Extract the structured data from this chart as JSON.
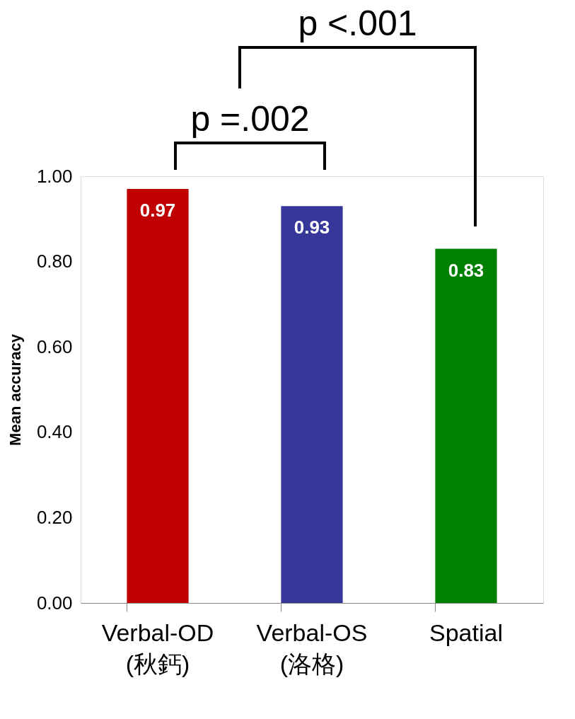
{
  "chart_data": {
    "type": "bar",
    "categories": [
      "Verbal-OD (秋鈣)",
      "Verbal-OS (洛格)",
      "Spatial"
    ],
    "values": [
      0.97,
      0.93,
      0.83
    ],
    "colors": [
      "#c00000",
      "#373699",
      "#008000"
    ],
    "ylabel": "Mean accuracy",
    "ylim": [
      0,
      1
    ],
    "yticks": [
      {
        "value": 0,
        "label": "0.00"
      },
      {
        "value": 0.2,
        "label": "0.20"
      },
      {
        "value": 0.4,
        "label": "0.40"
      },
      {
        "value": 0.6,
        "label": "0.60"
      },
      {
        "value": 0.8,
        "label": "0.80"
      },
      {
        "value": 1,
        "label": "1.00"
      }
    ],
    "data_labels": true,
    "grid": false,
    "annotations": [
      "p =.002",
      "p <.001"
    ]
  }
}
